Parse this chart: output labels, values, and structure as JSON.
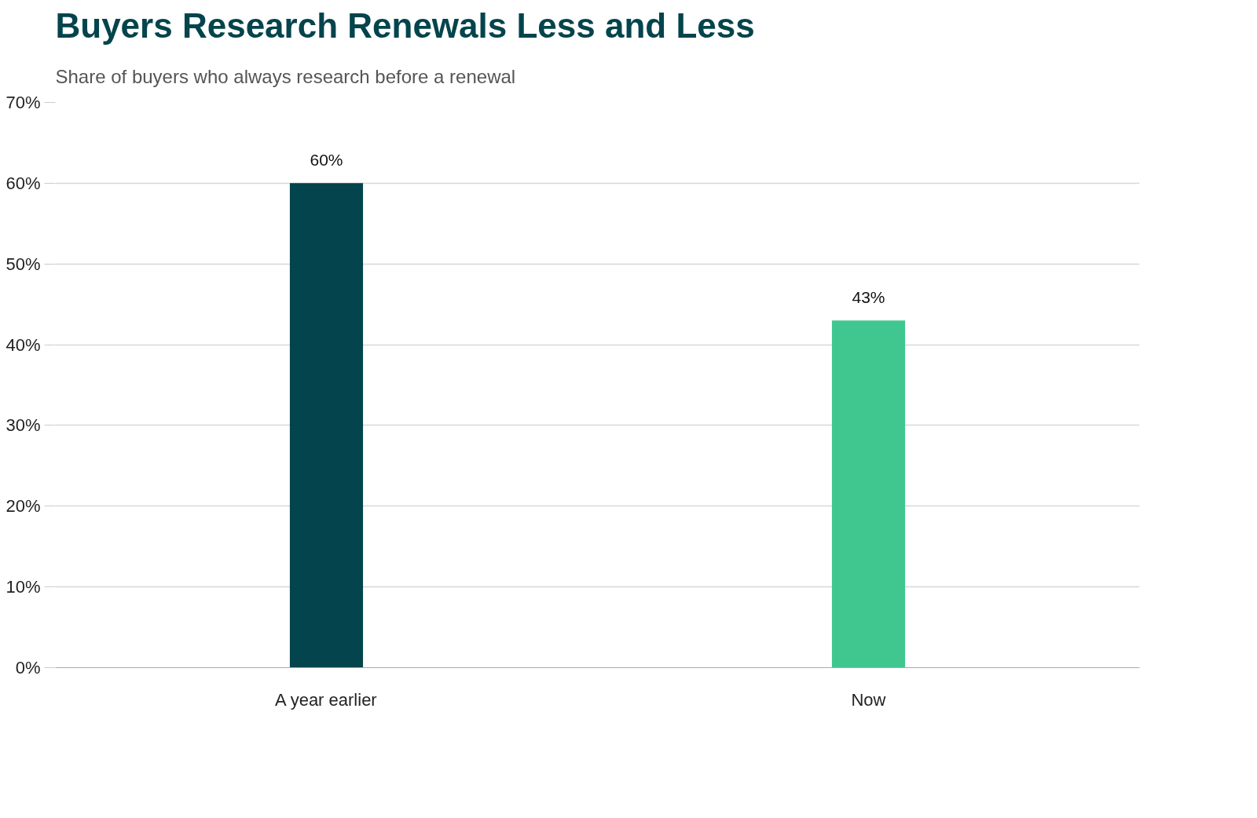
{
  "chart_data": {
    "type": "bar",
    "title": "Buyers Research Renewals Less and Less",
    "subtitle": "Share of buyers who always research before a renewal",
    "categories": [
      "A year earlier",
      "Now"
    ],
    "values": [
      60,
      43
    ],
    "colors": [
      "#04444c",
      "#40c790"
    ],
    "ylim": [
      0,
      70
    ],
    "yticks": [
      {
        "value": 0,
        "label": "0%"
      },
      {
        "value": 10,
        "label": "10%"
      },
      {
        "value": 20,
        "label": "20%"
      },
      {
        "value": 30,
        "label": "30%"
      },
      {
        "value": 40,
        "label": "40%"
      },
      {
        "value": 50,
        "label": "50%"
      },
      {
        "value": 60,
        "label": "60%"
      },
      {
        "value": 70,
        "label": "70%"
      }
    ],
    "value_labels": [
      "60%",
      "43%"
    ],
    "grid": "y"
  }
}
